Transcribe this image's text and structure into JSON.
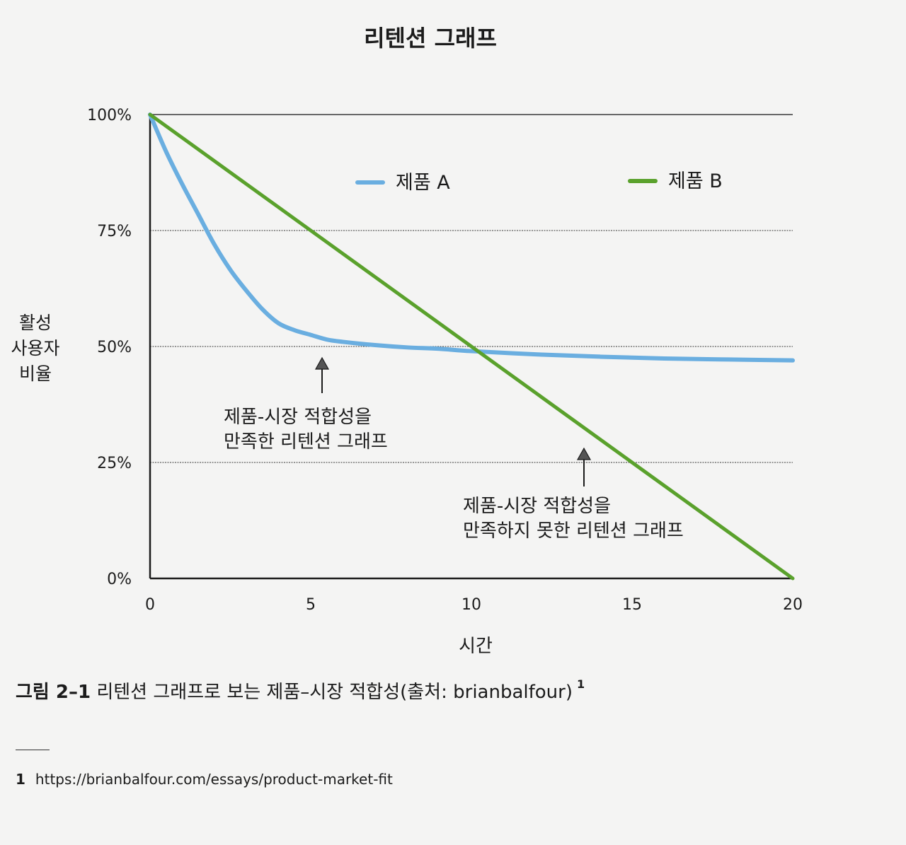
{
  "chart_data": {
    "type": "line",
    "title": "리텐션 그래프",
    "xlabel": "시간",
    "ylabel_lines": [
      "활성",
      "사용자",
      "비율"
    ],
    "x_ticks": [
      "0",
      "5",
      "10",
      "15",
      "20"
    ],
    "y_ticks": [
      "0%",
      "25%",
      "50%",
      "75%",
      "100%"
    ],
    "xlim": [
      0,
      20
    ],
    "ylim": [
      0,
      100
    ],
    "grid": true,
    "legend_position": "top",
    "series": [
      {
        "name": "제품 A",
        "color": "#6aaee0",
        "x": [
          0,
          0.5,
          1,
          1.5,
          2,
          2.5,
          3,
          3.5,
          4,
          4.5,
          5,
          5.5,
          6,
          7,
          8,
          9,
          10,
          12,
          14,
          16,
          18,
          20
        ],
        "y": [
          100,
          92,
          85,
          78.5,
          72,
          66.5,
          62,
          58,
          55,
          53.5,
          52.5,
          51.5,
          51,
          50.3,
          49.8,
          49.5,
          49,
          48.3,
          47.8,
          47.4,
          47.2,
          47
        ]
      },
      {
        "name": "제품 B",
        "color": "#5aa12c",
        "x": [
          0,
          20
        ],
        "y": [
          100,
          0
        ]
      }
    ],
    "annotations": [
      {
        "lines": [
          "제품-시장 적합성을",
          "만족한 리텐션 그래프"
        ]
      },
      {
        "lines": [
          "제품-시장 적합성을",
          "만족하지 못한 리텐션 그래프"
        ]
      }
    ]
  },
  "caption": {
    "figure_number": "그림 2–1",
    "text": "리텐션 그래프로 보는 제품–시장 적합성(출처: brianbalfour)",
    "ref": "1"
  },
  "footnote": {
    "number": "1",
    "text": "https://brianbalfour.com/essays/product-market-fit"
  }
}
